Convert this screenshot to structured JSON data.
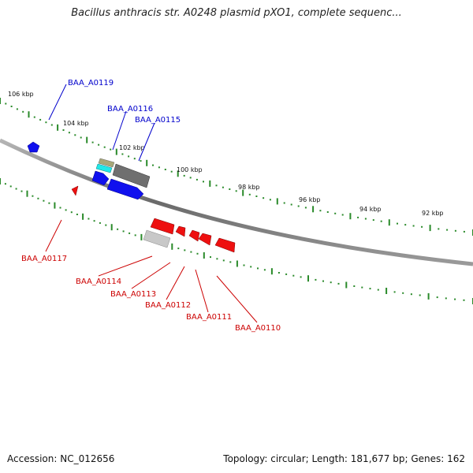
{
  "title": "Bacillus anthracis str. A0248 plasmid pXO1, complete sequenc...",
  "footer": {
    "accession": "Accession: NC_012656",
    "topology": "Topology: circular; Length: 181,677 bp; Genes: 162"
  },
  "colors": {
    "backbone": "#808080",
    "tick": "#2a8a2a",
    "forward_gene": "#1010ee",
    "reverse_gene": "#ee1010",
    "forward_label": "#0000cc",
    "reverse_label": "#cc0000",
    "grey_gene": "#6f6f6f",
    "light_grey_gene": "#c8c8c8",
    "khaki_gene": "#a8a878",
    "cyan_gene": "#20e8e8"
  },
  "scale_labels": [
    "106 kbp",
    "104 kbp",
    "102 kbp",
    "100 kbp",
    "98 kbp",
    "96 kbp",
    "94 kbp",
    "92 kbp"
  ],
  "forward_genes": [
    "BAA_A0119",
    "BAA_A0116",
    "BAA_A0115"
  ],
  "reverse_genes": [
    "BAA_A0117",
    "BAA_A0114",
    "BAA_A0113",
    "BAA_A0112",
    "BAA_A0111",
    "BAA_A0110"
  ]
}
